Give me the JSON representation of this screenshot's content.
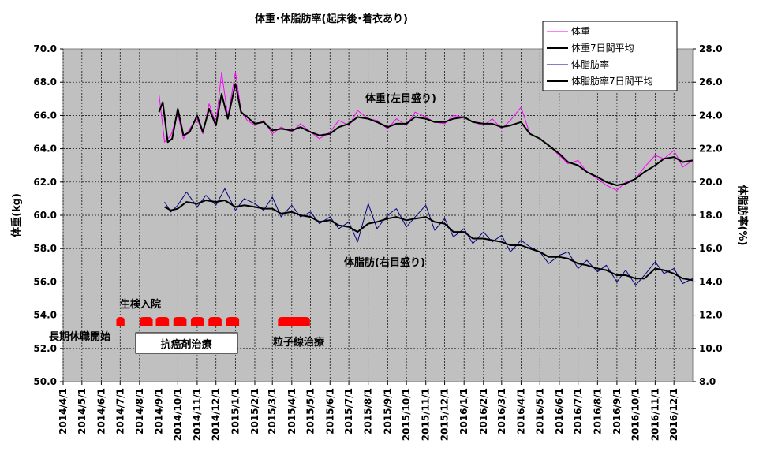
{
  "chart_data": {
    "type": "line",
    "title": "体重･体脂肪率(起床後･着衣あり)",
    "ylabel_left": "体重(kg)",
    "ylabel_right": "体脂肪率(%)",
    "ylim_left": [
      50,
      70
    ],
    "ylim_right": [
      8,
      28
    ],
    "yticks_left": [
      "50.0",
      "52.0",
      "54.0",
      "56.0",
      "58.0",
      "60.0",
      "62.0",
      "64.0",
      "66.0",
      "68.0",
      "70.0"
    ],
    "yticks_right": [
      "8.0",
      "10.0",
      "12.0",
      "14.0",
      "16.0",
      "18.0",
      "20.0",
      "22.0",
      "24.0",
      "26.0",
      "28.0"
    ],
    "x_categories": [
      "2014/4/1",
      "2014/5/1",
      "2014/6/1",
      "2014/7/1",
      "2014/8/1",
      "2014/9/1",
      "2014/10/1",
      "2014/11/1",
      "2014/12/1",
      "2015/1/1",
      "2015/2/1",
      "2015/3/1",
      "2015/4/1",
      "2015/5/1",
      "2015/6/1",
      "2015/7/1",
      "2015/8/1",
      "2015/9/1",
      "2015/10/1",
      "2015/11/1",
      "2015/12/1",
      "2016/1/1",
      "2016/2/1",
      "2016/3/1",
      "2016/4/1",
      "2016/5/1",
      "2016/6/1",
      "2016/7/1",
      "2016/8/1",
      "2016/9/1",
      "2016/10/1",
      "2016/11/1",
      "2016/12/1"
    ],
    "grid": true,
    "legend_position": "top-right",
    "colors": {
      "weight": "#ff00ff",
      "weight_avg": "#000000",
      "fat": "#000080",
      "fat_avg": "#000000",
      "plot_bg": "#c0c0c0",
      "marker": "#ff0000"
    },
    "series": [
      {
        "name": "体重",
        "axis": "left",
        "x": [
          "2014/9/1",
          "2014/9/10",
          "2014/9/20",
          "2014/10/1",
          "2014/10/10",
          "2014/10/20",
          "2014/11/1",
          "2014/11/10",
          "2014/11/20",
          "2014/12/1",
          "2014/12/10",
          "2014/12/20",
          "2015/1/1",
          "2015/1/10",
          "2015/1/20",
          "2015/2/1",
          "2015/2/15",
          "2015/3/1",
          "2015/3/15",
          "2015/4/1",
          "2015/4/15",
          "2015/5/1",
          "2015/5/15",
          "2015/6/1",
          "2015/6/15",
          "2015/7/1",
          "2015/7/15",
          "2015/8/1",
          "2015/8/15",
          "2015/9/1",
          "2015/9/15",
          "2015/10/1",
          "2015/10/15",
          "2015/11/1",
          "2015/11/15",
          "2015/12/1",
          "2015/12/15",
          "2016/1/1",
          "2016/1/15",
          "2016/2/1",
          "2016/2/15",
          "2016/3/1",
          "2016/3/15",
          "2016/4/1",
          "2016/4/15",
          "2016/5/1",
          "2016/5/15",
          "2016/6/1",
          "2016/6/15",
          "2016/7/1",
          "2016/7/15",
          "2016/8/1",
          "2016/8/15",
          "2016/9/1",
          "2016/9/15",
          "2016/10/1",
          "2016/10/15",
          "2016/11/1",
          "2016/11/15",
          "2016/12/1",
          "2016/12/15",
          "2016/12/31"
        ],
        "values": [
          67.3,
          64.4,
          64.8,
          66.1,
          64.6,
          65.2,
          65.8,
          64.9,
          66.7,
          65.5,
          68.6,
          65.9,
          68.6,
          66.3,
          65.7,
          65.4,
          65.7,
          64.9,
          65.3,
          65.0,
          65.5,
          65.0,
          64.6,
          65.0,
          65.7,
          65.4,
          66.3,
          65.8,
          65.7,
          65.2,
          65.8,
          65.4,
          66.2,
          65.9,
          65.6,
          65.5,
          66.0,
          65.9,
          65.6,
          65.4,
          65.8,
          65.2,
          65.7,
          66.5,
          64.9,
          64.6,
          64.2,
          63.6,
          63.1,
          63.3,
          62.6,
          62.2,
          61.8,
          61.5,
          62.0,
          62.2,
          62.9,
          63.6,
          63.4,
          63.9,
          62.9,
          63.3
        ]
      },
      {
        "name": "体重7日間平均",
        "axis": "left",
        "x": [
          "2014/9/1",
          "2014/9/7",
          "2014/9/15",
          "2014/9/22",
          "2014/10/1",
          "2014/10/10",
          "2014/10/20",
          "2014/11/1",
          "2014/11/10",
          "2014/11/20",
          "2014/12/1",
          "2014/12/10",
          "2014/12/20",
          "2015/1/1",
          "2015/1/10",
          "2015/1/20",
          "2015/2/1",
          "2015/2/15",
          "2015/3/1",
          "2015/3/15",
          "2015/4/1",
          "2015/4/15",
          "2015/5/1",
          "2015/5/15",
          "2015/6/1",
          "2015/6/15",
          "2015/7/1",
          "2015/7/15",
          "2015/8/1",
          "2015/8/15",
          "2015/9/1",
          "2015/9/15",
          "2015/10/1",
          "2015/10/15",
          "2015/11/1",
          "2015/11/15",
          "2015/12/1",
          "2015/12/15",
          "2016/1/1",
          "2016/1/15",
          "2016/2/1",
          "2016/2/15",
          "2016/3/1",
          "2016/3/15",
          "2016/4/1",
          "2016/4/15",
          "2016/5/1",
          "2016/5/15",
          "2016/6/1",
          "2016/6/15",
          "2016/7/1",
          "2016/7/15",
          "2016/8/1",
          "2016/8/15",
          "2016/9/1",
          "2016/9/15",
          "2016/10/1",
          "2016/10/15",
          "2016/11/1",
          "2016/11/15",
          "2016/12/1",
          "2016/12/15",
          "2016/12/31"
        ],
        "values": [
          66.2,
          66.8,
          64.4,
          64.6,
          66.4,
          64.8,
          65.0,
          66.0,
          65.0,
          66.4,
          65.4,
          67.3,
          65.8,
          67.9,
          66.2,
          65.9,
          65.5,
          65.6,
          65.1,
          65.2,
          65.1,
          65.3,
          65.0,
          64.8,
          64.9,
          65.3,
          65.5,
          65.9,
          65.8,
          65.6,
          65.3,
          65.5,
          65.5,
          65.9,
          65.8,
          65.6,
          65.6,
          65.8,
          65.9,
          65.6,
          65.5,
          65.5,
          65.3,
          65.4,
          65.6,
          64.9,
          64.6,
          64.2,
          63.7,
          63.2,
          63.0,
          62.6,
          62.3,
          62.0,
          61.8,
          61.9,
          62.2,
          62.6,
          63.0,
          63.4,
          63.5,
          63.2,
          63.3
        ]
      },
      {
        "name": "体脂肪率",
        "axis": "right",
        "x": [
          "2014/9/10",
          "2014/9/20",
          "2014/10/1",
          "2014/10/15",
          "2014/11/1",
          "2014/11/15",
          "2014/12/1",
          "2014/12/15",
          "2015/1/1",
          "2015/1/15",
          "2015/2/1",
          "2015/2/15",
          "2015/3/1",
          "2015/3/15",
          "2015/4/1",
          "2015/4/15",
          "2015/5/1",
          "2015/5/15",
          "2015/6/1",
          "2015/6/15",
          "2015/7/1",
          "2015/7/15",
          "2015/8/1",
          "2015/8/15",
          "2015/9/1",
          "2015/9/15",
          "2015/10/1",
          "2015/10/15",
          "2015/11/1",
          "2015/11/15",
          "2015/12/1",
          "2015/12/15",
          "2016/1/1",
          "2016/1/15",
          "2016/2/1",
          "2016/2/15",
          "2016/3/1",
          "2016/3/15",
          "2016/4/1",
          "2016/4/15",
          "2016/5/1",
          "2016/5/15",
          "2016/6/1",
          "2016/6/15",
          "2016/7/1",
          "2016/7/15",
          "2016/8/1",
          "2016/8/15",
          "2016/9/1",
          "2016/9/15",
          "2016/10/1",
          "2016/10/15",
          "2016/11/1",
          "2016/11/15",
          "2016/12/1",
          "2016/12/15",
          "2016/12/31"
        ],
        "values": [
          18.8,
          18.2,
          18.6,
          19.4,
          18.5,
          19.2,
          18.6,
          19.6,
          18.3,
          19.0,
          18.7,
          18.3,
          19.1,
          17.9,
          18.6,
          17.9,
          18.2,
          17.5,
          17.9,
          17.2,
          17.6,
          16.4,
          18.7,
          17.2,
          18.0,
          18.4,
          17.3,
          17.9,
          18.6,
          17.1,
          17.8,
          16.7,
          17.2,
          16.3,
          17.0,
          16.4,
          16.8,
          15.8,
          16.5,
          16.1,
          15.8,
          15.1,
          15.6,
          15.8,
          14.8,
          15.3,
          14.6,
          15.0,
          14.0,
          14.7,
          13.8,
          14.4,
          15.2,
          14.5,
          14.8,
          13.9,
          14.2
        ]
      },
      {
        "name": "体脂肪率7日間平均",
        "axis": "right",
        "x": [
          "2014/9/10",
          "2014/9/20",
          "2014/10/1",
          "2014/10/15",
          "2014/11/1",
          "2014/11/15",
          "2014/12/1",
          "2014/12/15",
          "2015/1/1",
          "2015/1/15",
          "2015/2/1",
          "2015/2/15",
          "2015/3/1",
          "2015/3/15",
          "2015/4/1",
          "2015/4/15",
          "2015/5/1",
          "2015/5/15",
          "2015/6/1",
          "2015/6/15",
          "2015/7/1",
          "2015/7/15",
          "2015/8/1",
          "2015/8/15",
          "2015/9/1",
          "2015/9/15",
          "2015/10/1",
          "2015/10/15",
          "2015/11/1",
          "2015/11/15",
          "2015/12/1",
          "2015/12/15",
          "2016/1/1",
          "2016/1/15",
          "2016/2/1",
          "2016/2/15",
          "2016/3/1",
          "2016/3/15",
          "2016/4/1",
          "2016/4/15",
          "2016/5/1",
          "2016/5/15",
          "2016/6/1",
          "2016/6/15",
          "2016/7/1",
          "2016/7/15",
          "2016/8/1",
          "2016/8/15",
          "2016/9/1",
          "2016/9/15",
          "2016/10/1",
          "2016/10/15",
          "2016/11/1",
          "2016/11/15",
          "2016/12/1",
          "2016/12/15",
          "2016/12/31"
        ],
        "values": [
          18.5,
          18.3,
          18.4,
          18.8,
          18.7,
          18.9,
          18.8,
          18.9,
          18.5,
          18.6,
          18.5,
          18.4,
          18.4,
          18.1,
          18.2,
          18.0,
          17.9,
          17.6,
          17.7,
          17.4,
          17.3,
          17.0,
          17.5,
          17.6,
          17.8,
          17.9,
          17.7,
          17.8,
          17.9,
          17.6,
          17.5,
          17.0,
          17.0,
          16.6,
          16.6,
          16.5,
          16.4,
          16.2,
          16.2,
          16.0,
          15.8,
          15.5,
          15.5,
          15.4,
          15.1,
          15.0,
          14.8,
          14.7,
          14.4,
          14.4,
          14.2,
          14.2,
          14.8,
          14.7,
          14.5,
          14.2,
          14.1
        ]
      }
    ],
    "annotations": [
      {
        "text": "体重(左目盛り)"
      },
      {
        "text": "体脂肪(右目盛り)"
      },
      {
        "text": "生検入院"
      },
      {
        "text": "長期休職開始"
      },
      {
        "text": "抗癌剤治療"
      },
      {
        "text": "粒子線治療"
      }
    ],
    "treatment_periods": {
      "biopsy": [
        [
          "2014/6/25",
          "2014/7/8"
        ]
      ],
      "chemo": [
        [
          "2014/8/1",
          "2014/8/22"
        ],
        [
          "2014/8/27",
          "2014/9/17"
        ],
        [
          "2014/9/24",
          "2014/10/15"
        ],
        [
          "2014/10/22",
          "2014/11/12"
        ],
        [
          "2014/11/19",
          "2014/12/10"
        ],
        [
          "2014/12/17",
          "2015/1/7"
        ]
      ],
      "particle": [
        [
          "2015/3/10",
          "2015/4/30"
        ]
      ]
    }
  }
}
